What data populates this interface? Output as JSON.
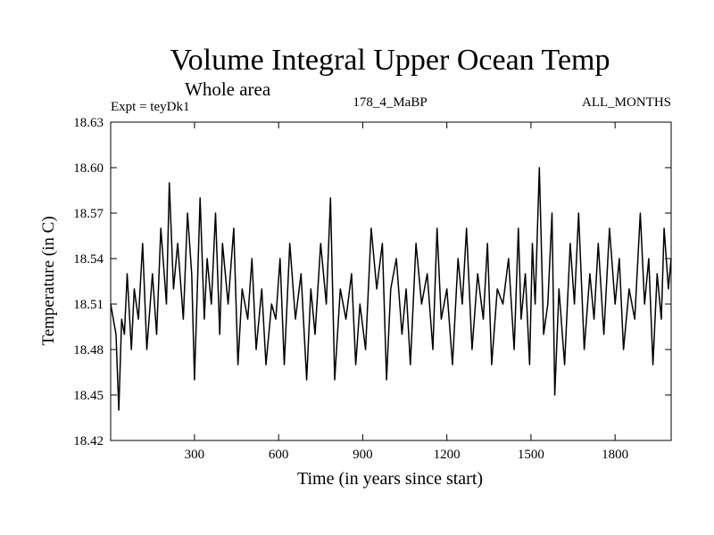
{
  "header": {
    "title": "Volume Integral Upper Ocean Temp",
    "subtitle": "Whole area",
    "experiment": "Expt = teyDk1",
    "run": "178_4_MaBP",
    "season": "ALL_MONTHS"
  },
  "colors": {
    "line": "#000000",
    "background": "#ffffff",
    "axis": "#000000"
  },
  "chart_data": {
    "type": "line",
    "title": "Volume Integral Upper Ocean Temp",
    "subtitle": "Whole area",
    "xlabel": "Time (in years since start)",
    "ylabel": "Temperature (in C)",
    "xlim": [
      1,
      2000
    ],
    "ylim": [
      18.42,
      18.63
    ],
    "xticks": [
      300,
      600,
      900,
      1200,
      1500,
      1800
    ],
    "xtick_labels": [
      "300",
      "600",
      "900",
      "1200",
      "1500",
      "1800"
    ],
    "yticks": [
      18.42,
      18.45,
      18.48,
      18.51,
      18.54,
      18.57,
      18.6,
      18.63
    ],
    "ytick_labels": [
      "18.42",
      "18.45",
      "18.48",
      "18.51",
      "18.54",
      "18.57",
      "18.60",
      "18.63"
    ],
    "grid": false,
    "series": [
      {
        "name": "Volume integral upper ocean temperature",
        "x": [
          1,
          20,
          30,
          40,
          50,
          60,
          75,
          85,
          100,
          115,
          130,
          150,
          165,
          180,
          200,
          210,
          225,
          240,
          260,
          275,
          290,
          300,
          310,
          320,
          335,
          345,
          360,
          375,
          390,
          400,
          420,
          440,
          455,
          470,
          490,
          505,
          520,
          540,
          555,
          575,
          590,
          605,
          620,
          640,
          660,
          680,
          700,
          715,
          730,
          750,
          770,
          785,
          800,
          820,
          840,
          860,
          875,
          890,
          910,
          930,
          950,
          970,
          985,
          1000,
          1020,
          1040,
          1055,
          1070,
          1090,
          1110,
          1130,
          1150,
          1165,
          1180,
          1200,
          1220,
          1240,
          1255,
          1270,
          1290,
          1310,
          1330,
          1345,
          1360,
          1380,
          1400,
          1420,
          1440,
          1455,
          1465,
          1480,
          1495,
          1505,
          1515,
          1530,
          1545,
          1560,
          1575,
          1585,
          1600,
          1620,
          1640,
          1655,
          1670,
          1690,
          1710,
          1725,
          1740,
          1760,
          1780,
          1800,
          1815,
          1830,
          1850,
          1870,
          1890,
          1905,
          1920,
          1935,
          1950,
          1965,
          1975,
          1990,
          2000
        ],
        "y": [
          18.51,
          18.49,
          18.44,
          18.5,
          18.49,
          18.53,
          18.48,
          18.52,
          18.5,
          18.55,
          18.48,
          18.53,
          18.49,
          18.56,
          18.51,
          18.59,
          18.52,
          18.55,
          18.5,
          18.57,
          18.53,
          18.46,
          18.52,
          18.58,
          18.5,
          18.54,
          18.51,
          18.57,
          18.49,
          18.55,
          18.51,
          18.56,
          18.47,
          18.52,
          18.5,
          18.54,
          18.48,
          18.52,
          18.47,
          18.51,
          18.5,
          18.54,
          18.47,
          18.55,
          18.5,
          18.53,
          18.46,
          18.52,
          18.49,
          18.55,
          18.51,
          18.58,
          18.46,
          18.52,
          18.5,
          18.53,
          18.47,
          18.51,
          18.48,
          18.56,
          18.52,
          18.55,
          18.46,
          18.52,
          18.54,
          18.49,
          18.52,
          18.47,
          18.55,
          18.51,
          18.53,
          18.48,
          18.56,
          18.5,
          18.52,
          18.47,
          18.54,
          18.51,
          18.56,
          18.48,
          18.53,
          18.5,
          18.55,
          18.47,
          18.52,
          18.51,
          18.54,
          18.48,
          18.56,
          18.5,
          18.53,
          18.47,
          18.55,
          18.51,
          18.6,
          18.49,
          18.51,
          18.57,
          18.45,
          18.52,
          18.47,
          18.55,
          18.51,
          18.57,
          18.48,
          18.53,
          18.5,
          18.55,
          18.49,
          18.56,
          18.51,
          18.54,
          18.48,
          18.52,
          18.5,
          18.57,
          18.51,
          18.54,
          18.47,
          18.53,
          18.5,
          18.56,
          18.52,
          18.54
        ]
      }
    ]
  }
}
